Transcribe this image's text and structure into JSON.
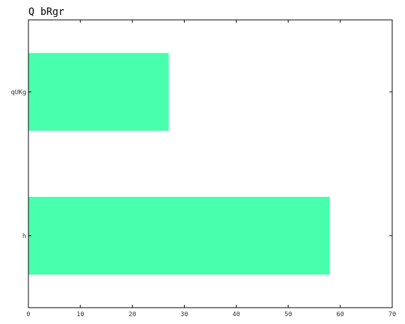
{
  "chart_data": {
    "type": "bar",
    "orientation": "horizontal",
    "title": "Q  bRgr",
    "xlabel": "",
    "ylabel": "",
    "categories": [
      "h",
      "qUKg"
    ],
    "values": [
      58,
      27
    ],
    "xlim": [
      0,
      70
    ],
    "xticks": [
      0,
      10,
      20,
      30,
      40,
      50,
      60,
      70
    ],
    "bar_color": "#47ffad",
    "grid": false,
    "legend": "none"
  }
}
